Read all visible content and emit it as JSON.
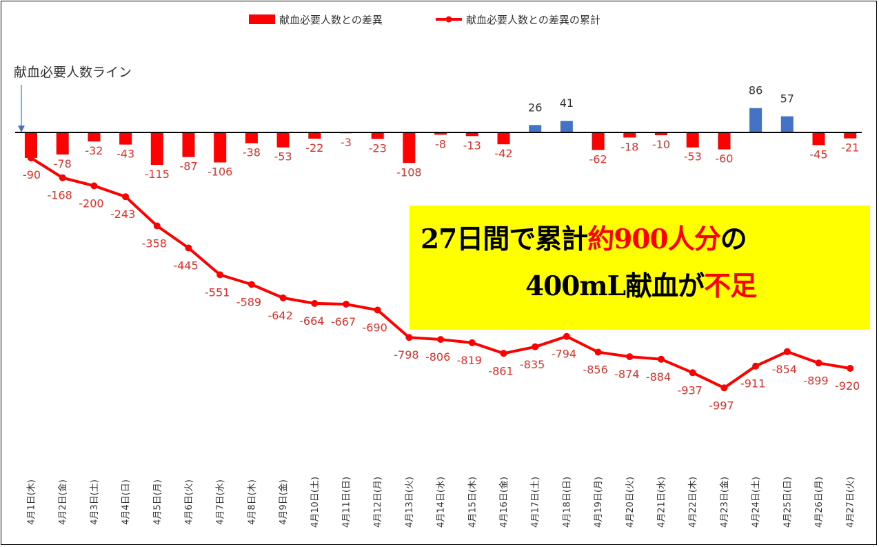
{
  "chart_data": {
    "type": "bar+line",
    "categories": [
      "4月1日(木)",
      "4月2日(金)",
      "4月3日(土)",
      "4月4日(日)",
      "4月5日(月)",
      "4月6日(火)",
      "4月7日(水)",
      "4月8日(木)",
      "4月9日(金)",
      "4月10日(土)",
      "4月11日(日)",
      "4月12日(月)",
      "4月13日(火)",
      "4月14日(水)",
      "4月15日(木)",
      "4月16日(金)",
      "4月17日(土)",
      "4月18日(日)",
      "4月19日(月)",
      "4月20日(火)",
      "4月21日(水)",
      "4月22日(木)",
      "4月23日(金)",
      "4月24日(土)",
      "4月25日(日)",
      "4月26日(月)",
      "4月27日(火)"
    ],
    "series": [
      {
        "name": "献血必要人数との差異",
        "type": "bar",
        "values": [
          -90,
          -78,
          -32,
          -43,
          -115,
          -87,
          -106,
          -38,
          -53,
          -22,
          -3,
          -23,
          -108,
          -8,
          -13,
          -42,
          26,
          41,
          -62,
          -18,
          -10,
          -53,
          -60,
          86,
          57,
          -45,
          -21
        ]
      },
      {
        "name": "献血必要人数との差異の累計",
        "type": "line",
        "values": [
          -90,
          -168,
          -200,
          -243,
          -358,
          -445,
          -551,
          -589,
          -642,
          -664,
          -667,
          -690,
          -798,
          -806,
          -819,
          -861,
          -835,
          -794,
          -856,
          -874,
          -884,
          -937,
          -997,
          -911,
          -854,
          -899,
          -920
        ]
      }
    ],
    "baseline_label": "献血必要人数ライン",
    "legend_position": "top",
    "grid": false,
    "colors": {
      "negative_bar": "#ff0000",
      "positive_bar": "#4472c4",
      "line": "#ff0000",
      "negative_label": "#e0302a",
      "axis": "#000000"
    }
  },
  "callout": {
    "line1_prefix": "27日間で累計",
    "line1_highlight": "約900人分",
    "line1_suffix": "の",
    "line2_prefix": "400mL献血が",
    "line2_highlight": "不足"
  }
}
